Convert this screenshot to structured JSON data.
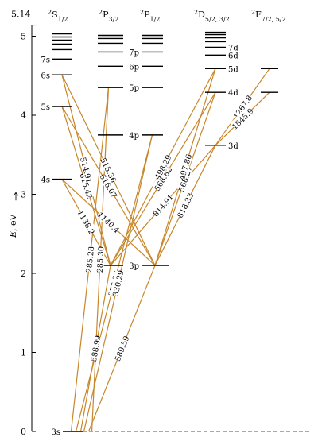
{
  "columns": [
    {
      "id": "S",
      "base": "S",
      "sup": "2",
      "sub": "1/2"
    },
    {
      "id": "P32",
      "base": "P",
      "sup": "2",
      "sub": "3/2"
    },
    {
      "id": "P12",
      "base": "P",
      "sup": "2",
      "sub": "1/2"
    },
    {
      "id": "D",
      "base": "D",
      "sup": "2",
      "sub": "5/2, 3/2"
    },
    {
      "id": "F",
      "base": "F",
      "sup": "2",
      "sub": "7/2, 5/2"
    }
  ],
  "y_axis": {
    "label_main": "E",
    "label_unit": ", eV",
    "max_label": "5.14",
    "ticks": [
      "0",
      "1",
      "2",
      "3",
      "4",
      "5"
    ],
    "limit_value": 5.14
  },
  "levels": {
    "S": [
      {
        "n": "3s",
        "E": 0
      },
      {
        "n": "4s",
        "E": 3.19
      },
      {
        "n": "5s",
        "E": 4.11
      },
      {
        "n": "6s",
        "E": 4.51
      },
      {
        "n": "7s",
        "E": 4.71
      },
      {
        "n": "",
        "E": 4.83
      },
      {
        "n": "",
        "E": 4.9
      },
      {
        "n": "",
        "E": 4.95
      },
      {
        "n": "",
        "E": 4.99
      },
      {
        "n": "",
        "E": 5.03
      }
    ],
    "P32": [
      {
        "n": "",
        "E": 2.1
      },
      {
        "n": "",
        "E": 3.75
      },
      {
        "n": "",
        "E": 4.35
      },
      {
        "n": "",
        "E": 4.62
      },
      {
        "n": "",
        "E": 4.8
      },
      {
        "n": "",
        "E": 4.91
      },
      {
        "n": "",
        "E": 4.97
      },
      {
        "n": "",
        "E": 5.01
      }
    ],
    "P12": [
      {
        "n": "3p",
        "E": 2.1
      },
      {
        "n": "4p",
        "E": 3.75
      },
      {
        "n": "5p",
        "E": 4.35
      },
      {
        "n": "6p",
        "E": 4.62
      },
      {
        "n": "7p",
        "E": 4.8
      },
      {
        "n": "",
        "E": 4.91
      },
      {
        "n": "",
        "E": 4.97
      },
      {
        "n": "",
        "E": 5.01
      }
    ],
    "D": [
      {
        "n": "3d",
        "E": 3.62
      },
      {
        "n": "4d",
        "E": 4.29
      },
      {
        "n": "5d",
        "E": 4.59
      },
      {
        "n": "6d",
        "E": 4.76
      },
      {
        "n": "7d",
        "E": 4.86
      },
      {
        "n": "",
        "E": 4.93
      },
      {
        "n": "",
        "E": 4.98
      },
      {
        "n": "",
        "E": 5.02
      },
      {
        "n": "",
        "E": 5.05
      }
    ],
    "F": [
      {
        "n": "",
        "E": 4.29
      },
      {
        "n": "",
        "E": 4.59
      }
    ]
  },
  "transitions": [
    {
      "label": "589.59",
      "from": "S:3s",
      "to": "P12:3p"
    },
    {
      "label": "588.99",
      "from": "S:3s",
      "to": "P32:3p"
    },
    {
      "label": "330.23",
      "from": "S:3s",
      "to": "P12:4p"
    },
    {
      "label": "285.28",
      "from": "S:3s",
      "to": "P32:5p"
    },
    {
      "label": "1140.4",
      "from": "S:4s",
      "to": "P12:3p"
    },
    {
      "label": "1138.2",
      "from": "S:4s",
      "to": "P32:3p"
    },
    {
      "label": "616.07",
      "from": "S:5s",
      "to": "P12:3p"
    },
    {
      "label": "615.42",
      "from": "S:5s",
      "to": "P32:3p"
    },
    {
      "label": "515.36",
      "from": "S:6s",
      "to": "P12:3p"
    },
    {
      "label": "514.91",
      "from": "S:6s",
      "to": "P32:3p"
    },
    {
      "label": "330.29",
      "from": "S:3s",
      "to": "P12:4p"
    },
    {
      "label": "285.30",
      "from": "S:3s",
      "to": "P32:5p"
    },
    {
      "label": "568.82",
      "from": "P32:3p",
      "to": "D:4d"
    },
    {
      "label": "568.27",
      "from": "P12:3p",
      "to": "D:4d"
    },
    {
      "label": "498.29",
      "from": "P32:3p",
      "to": "D:5d"
    },
    {
      "label": "497.86",
      "from": "P12:3p",
      "to": "D:5d"
    },
    {
      "label": "818.33",
      "from": "P12:3p",
      "to": "D:3d"
    },
    {
      "label": "814.91",
      "from": "P32:3p",
      "to": "D:3d"
    },
    {
      "label": "1267.8",
      "from": "D:3d",
      "to": "F:5f"
    },
    {
      "label": "1845.9",
      "from": "D:3d",
      "to": "F:4f"
    }
  ],
  "colors": {
    "transition": "#c8862a",
    "level": "#000000",
    "limit": "#555555"
  }
}
